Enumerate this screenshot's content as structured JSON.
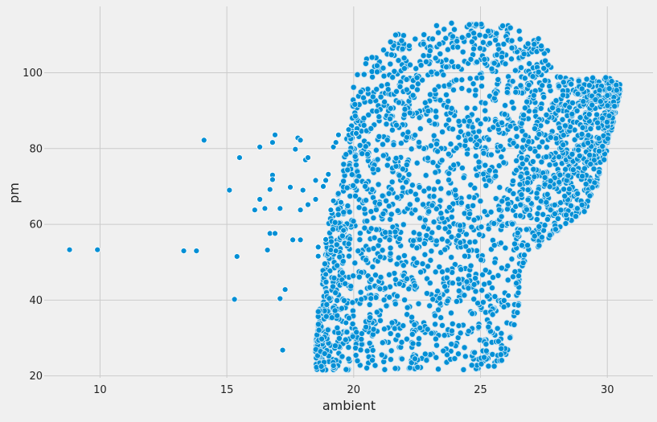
{
  "chart_data": {
    "type": "scatter",
    "title": "",
    "xlabel": "ambient",
    "ylabel": "pm",
    "xlim": [
      7.8,
      31.8
    ],
    "ylim": [
      19.5,
      117.5
    ],
    "xticks": [
      10,
      15,
      20,
      25,
      30
    ],
    "yticks": [
      20,
      40,
      60,
      80,
      100
    ],
    "grid": true,
    "legend": "none",
    "marker_color": "#008fd5",
    "marker_edge": "#ffffff",
    "outlier_points": [
      {
        "x": 8.8,
        "y": 53.3
      },
      {
        "x": 9.9,
        "y": 53.3
      },
      {
        "x": 13.3,
        "y": 53.0
      },
      {
        "x": 13.8,
        "y": 53.0
      },
      {
        "x": 14.1,
        "y": 82.2
      },
      {
        "x": 15.1,
        "y": 69.0
      },
      {
        "x": 15.3,
        "y": 40.2
      },
      {
        "x": 15.4,
        "y": 51.5
      },
      {
        "x": 15.5,
        "y": 77.6
      },
      {
        "x": 16.1,
        "y": 63.8
      },
      {
        "x": 16.3,
        "y": 80.4
      },
      {
        "x": 16.3,
        "y": 66.6
      },
      {
        "x": 16.5,
        "y": 64.2
      },
      {
        "x": 16.6,
        "y": 53.2
      },
      {
        "x": 16.7,
        "y": 57.6
      },
      {
        "x": 16.7,
        "y": 69.2
      },
      {
        "x": 16.8,
        "y": 73.0
      },
      {
        "x": 16.8,
        "y": 71.8
      },
      {
        "x": 16.9,
        "y": 57.6
      },
      {
        "x": 16.8,
        "y": 81.6
      },
      {
        "x": 16.9,
        "y": 83.6
      },
      {
        "x": 17.1,
        "y": 40.4
      },
      {
        "x": 17.1,
        "y": 64.2
      },
      {
        "x": 17.2,
        "y": 26.8
      },
      {
        "x": 17.3,
        "y": 42.8
      },
      {
        "x": 17.5,
        "y": 69.8
      },
      {
        "x": 17.6,
        "y": 55.9
      },
      {
        "x": 17.7,
        "y": 79.8
      },
      {
        "x": 17.8,
        "y": 82.8
      },
      {
        "x": 17.9,
        "y": 82.2
      },
      {
        "x": 17.9,
        "y": 63.8
      },
      {
        "x": 17.9,
        "y": 55.9
      },
      {
        "x": 18.0,
        "y": 69.0
      },
      {
        "x": 18.1,
        "y": 77.0
      },
      {
        "x": 18.2,
        "y": 65.2
      },
      {
        "x": 18.2,
        "y": 77.6
      },
      {
        "x": 18.5,
        "y": 71.6
      },
      {
        "x": 18.5,
        "y": 66.6
      },
      {
        "x": 18.6,
        "y": 54.0
      },
      {
        "x": 18.6,
        "y": 51.6
      },
      {
        "x": 18.8,
        "y": 70.0
      },
      {
        "x": 18.9,
        "y": 71.6
      },
      {
        "x": 18.9,
        "y": 56.0
      },
      {
        "x": 18.9,
        "y": 46.8
      },
      {
        "x": 19.0,
        "y": 73.2
      },
      {
        "x": 19.1,
        "y": 53.2
      },
      {
        "x": 19.1,
        "y": 63.8
      },
      {
        "x": 19.2,
        "y": 80.4
      },
      {
        "x": 19.2,
        "y": 66.2
      },
      {
        "x": 19.3,
        "y": 81.6
      },
      {
        "x": 19.3,
        "y": 53.0
      },
      {
        "x": 19.4,
        "y": 83.6
      },
      {
        "x": 19.5,
        "y": 65.8
      },
      {
        "x": 19.8,
        "y": 85.0
      },
      {
        "x": 20.1,
        "y": 84.0
      },
      {
        "x": 19.7,
        "y": 34.0
      },
      {
        "x": 19.6,
        "y": 58.4
      },
      {
        "x": 26.1,
        "y": 41.2
      }
    ],
    "dense_region_columns": [
      {
        "x": 18.5,
        "y_min": 21.5,
        "y_max": 32
      },
      {
        "x": 19.0,
        "y_min": 21.5,
        "y_max": 60
      },
      {
        "x": 19.5,
        "y_min": 21.5,
        "y_max": 72
      },
      {
        "x": 20.0,
        "y_min": 21.5,
        "y_max": 98
      },
      {
        "x": 20.5,
        "y_min": 21.5,
        "y_max": 104
      },
      {
        "x": 21.0,
        "y_min": 21.5,
        "y_max": 105
      },
      {
        "x": 21.5,
        "y_min": 21.5,
        "y_max": 110
      },
      {
        "x": 22.0,
        "y_min": 21.5,
        "y_max": 111
      },
      {
        "x": 22.5,
        "y_min": 21.5,
        "y_max": 111
      },
      {
        "x": 23.0,
        "y_min": 21.5,
        "y_max": 112
      },
      {
        "x": 23.5,
        "y_min": 21.5,
        "y_max": 113
      },
      {
        "x": 24.0,
        "y_min": 21.5,
        "y_max": 113.5
      },
      {
        "x": 24.5,
        "y_min": 21.5,
        "y_max": 113
      },
      {
        "x": 25.0,
        "y_min": 21.5,
        "y_max": 113
      },
      {
        "x": 25.5,
        "y_min": 22,
        "y_max": 113
      },
      {
        "x": 26.0,
        "y_min": 25,
        "y_max": 113
      },
      {
        "x": 26.4,
        "y_min": 34,
        "y_max": 112
      },
      {
        "x": 26.8,
        "y_min": 52,
        "y_max": 109
      },
      {
        "x": 27.5,
        "y_min": 55,
        "y_max": 109
      },
      {
        "x": 28.0,
        "y_min": 57,
        "y_max": 99
      },
      {
        "x": 28.5,
        "y_min": 60,
        "y_max": 99
      },
      {
        "x": 29.0,
        "y_min": 62,
        "y_max": 98
      },
      {
        "x": 29.5,
        "y_min": 68,
        "y_max": 99
      },
      {
        "x": 30.0,
        "y_min": 80,
        "y_max": 99
      },
      {
        "x": 30.5,
        "y_min": 95,
        "y_max": 97
      }
    ]
  }
}
